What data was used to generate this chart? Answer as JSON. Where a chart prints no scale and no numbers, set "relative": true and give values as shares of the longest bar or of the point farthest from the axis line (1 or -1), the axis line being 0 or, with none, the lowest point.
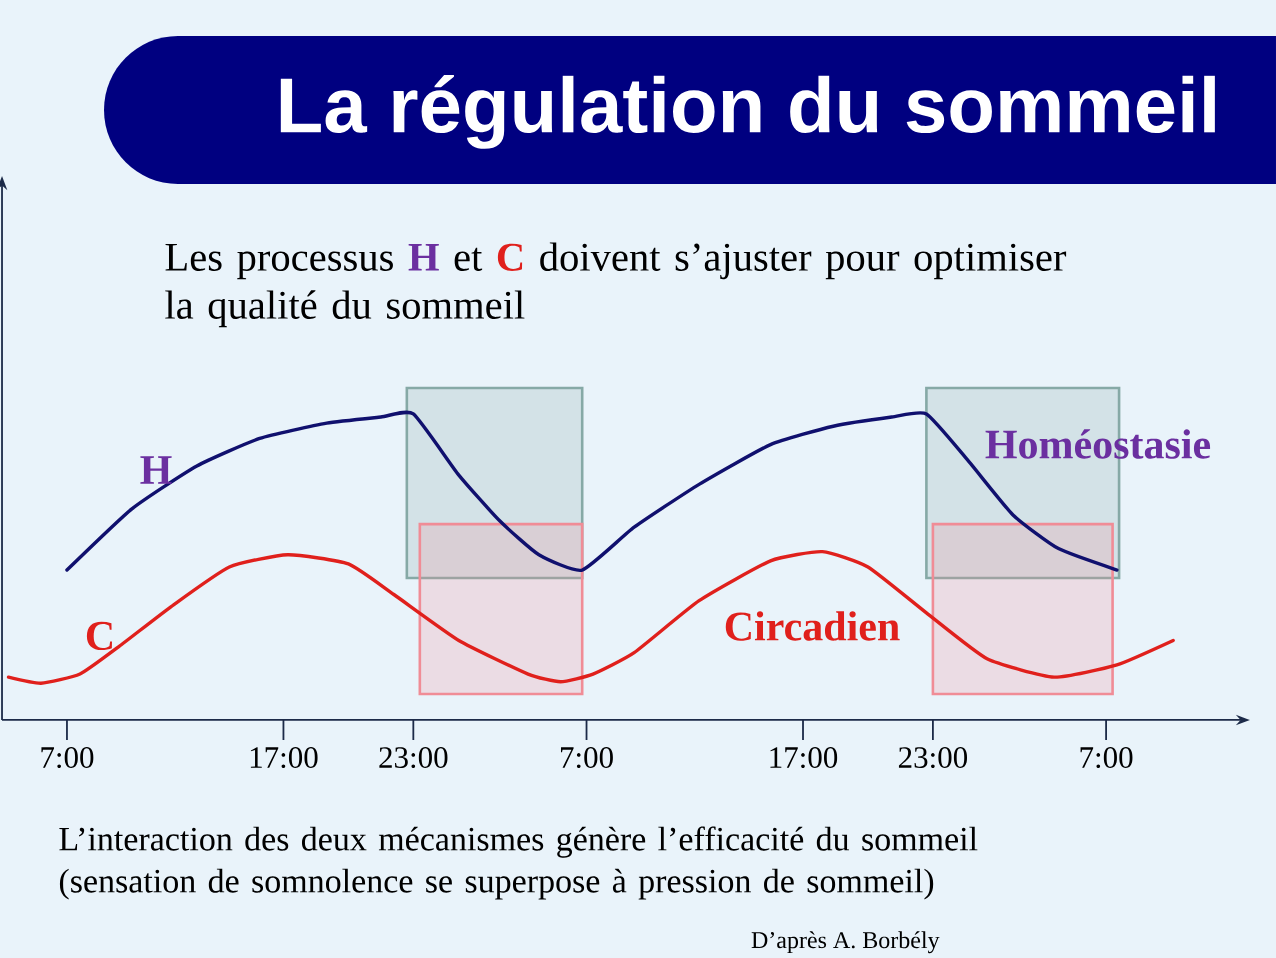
{
  "chart_data": {
    "type": "line",
    "title": "La régulation du sommeil",
    "subtitle": "Les processus **H** et **C** doivent s’ajuster pour optimiser la qualité du sommeil",
    "relative": true,
    "xlim": [
      "2000-01-01T04:00",
      "2000-01-03T13:00"
    ],
    "xticks": [
      {
        "value": "2000-01-01T07:00",
        "label": "7:00"
      },
      {
        "value": "2000-01-01T17:00",
        "label": "17:00"
      },
      {
        "value": "2000-01-01T23:00",
        "label": "23:00"
      },
      {
        "value": "2000-01-02T07:00",
        "label": "7:00"
      },
      {
        "value": "2000-01-02T17:00",
        "label": "17:00"
      },
      {
        "value": "2000-01-02T23:00",
        "label": "23:00"
      },
      {
        "value": "2000-01-03T07:00",
        "label": "7:00"
      }
    ],
    "series": [
      {
        "name": "H",
        "color": "#10106e",
        "x": [
          "2000-01-01T07:00",
          "2000-01-01T10:00",
          "2000-01-01T13:00",
          "2000-01-01T15:54",
          "2000-01-01T19:00",
          "2000-01-01T21:30",
          "2000-01-01T23:00",
          "2000-01-02T01:06",
          "2000-01-02T03:00",
          "2000-01-02T04:48",
          "2000-01-02T06:48",
          "2000-01-02T09:12",
          "2000-01-02T12:12",
          "2000-01-02T15:30",
          "2000-01-02T18:24",
          "2000-01-02T21:06",
          "2000-01-02T22:42",
          "2000-01-03T00:36",
          "2000-01-03T02:42",
          "2000-01-03T04:48",
          "2000-01-03T07:30"
        ],
        "values": [
          0.49,
          0.69,
          0.83,
          0.92,
          0.97,
          0.99,
          1.0,
          0.8,
          0.65,
          0.54,
          0.49,
          0.63,
          0.77,
          0.9,
          0.96,
          0.99,
          1.0,
          0.85,
          0.67,
          0.56,
          0.49
        ]
      },
      {
        "name": "C",
        "color": "#e0201c",
        "x": [
          "2000-01-01T04:18",
          "2000-01-01T05:48",
          "2000-01-01T07:36",
          "2000-01-01T09:24",
          "2000-01-01T11:48",
          "2000-01-01T14:30",
          "2000-01-01T17:12",
          "2000-01-01T20:00",
          "2000-01-01T22:06",
          "2000-01-02T01:06",
          "2000-01-02T04:18",
          "2000-01-02T05:48",
          "2000-01-02T07:18",
          "2000-01-02T09:12",
          "2000-01-02T12:12",
          "2000-01-02T15:30",
          "2000-01-02T17:54",
          "2000-01-02T20:00",
          "2000-01-02T22:42",
          "2000-01-03T01:30",
          "2000-01-03T04:36",
          "2000-01-03T07:30",
          "2000-01-03T10:06"
        ],
        "values": [
          0.14,
          0.12,
          0.15,
          0.24,
          0.37,
          0.5,
          0.54,
          0.51,
          0.41,
          0.26,
          0.15,
          0.125,
          0.15,
          0.22,
          0.39,
          0.52,
          0.55,
          0.5,
          0.35,
          0.2,
          0.14,
          0.18,
          0.26
        ]
      }
    ],
    "bands": [
      {
        "axis": "x",
        "from": "2000-01-01T22:42",
        "to": "2000-01-02T06:48",
        "color": "#86a9a6"
      },
      {
        "axis": "x",
        "from": "2000-01-01T23:18",
        "to": "2000-01-02T06:48",
        "color": "#f08c96"
      },
      {
        "axis": "x",
        "from": "2000-01-02T22:42",
        "to": "2000-01-03T07:36",
        "color": "#86a9a6"
      },
      {
        "axis": "x",
        "from": "2000-01-02T23:00",
        "to": "2000-01-03T07:18",
        "color": "#f08c96"
      }
    ],
    "annotations": [
      "Homéostasie",
      "Circadien",
      "L’interaction des deux mécanismes génère l’efficacité du sommeil (sensation de somnolence se superpose à pression de sommeil)",
      "D’après A. Borbély"
    ]
  }
}
